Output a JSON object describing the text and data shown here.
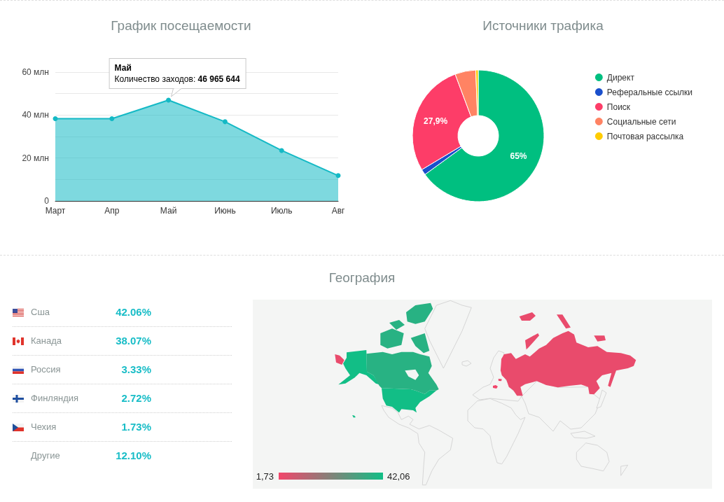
{
  "chart_data": [
    {
      "type": "area",
      "title": "График посещаемости",
      "categories": [
        "Март",
        "Апр",
        "Май",
        "Июнь",
        "Июль",
        "Авг"
      ],
      "values": [
        38.3,
        38.3,
        46.965644,
        36.9,
        23.5,
        11.8
      ],
      "color": "#14b9c5",
      "ylim": [
        0,
        60
      ],
      "yticks": [
        0,
        {
          "value": 10,
          "label": null
        },
        {
          "value": 20,
          "label": "20 млн"
        },
        {
          "value": 30,
          "label": null
        },
        {
          "value": 40,
          "label": "40 млн"
        },
        {
          "value": 50,
          "label": null
        },
        {
          "value": 60,
          "label": "60 млн"
        }
      ],
      "grid": "y",
      "marker": "circle",
      "annotations": [
        "Май",
        {
          "text": "Количество заходов: 46 965 644",
          "x": "Май",
          "y": 46.965644
        }
      ]
    },
    {
      "type": "donut",
      "title": "Источники трафика",
      "categories": [
        "Директ",
        "Реферальные ссылки",
        "Поиск",
        "Социальные сети",
        "Почтовая рассылка"
      ],
      "values": [
        65,
        1.4,
        27.9,
        5.1,
        0.6
      ],
      "colors": [
        "#00bf80",
        "#1a4fcc",
        "#fd3d68",
        "#ff8363",
        "#ffcc00"
      ],
      "value_labels": [
        "65%",
        null,
        "27,9%",
        null,
        null
      ],
      "legend": "top right"
    },
    {
      "type": "other",
      "title": "География",
      "categories": [
        "Сша",
        "Канада",
        "Россия",
        "Финляндия",
        "Чехия",
        "Другие"
      ],
      "values": [
        42.06,
        38.07,
        3.33,
        2.72,
        1.73,
        12.1
      ],
      "value_labels": [
        "42.06%",
        "38.07%",
        "3.33%",
        "2.72%",
        "1.73%",
        "12.10%"
      ],
      "annotations": [
        "1,73",
        "42,06"
      ]
    }
  ]
}
